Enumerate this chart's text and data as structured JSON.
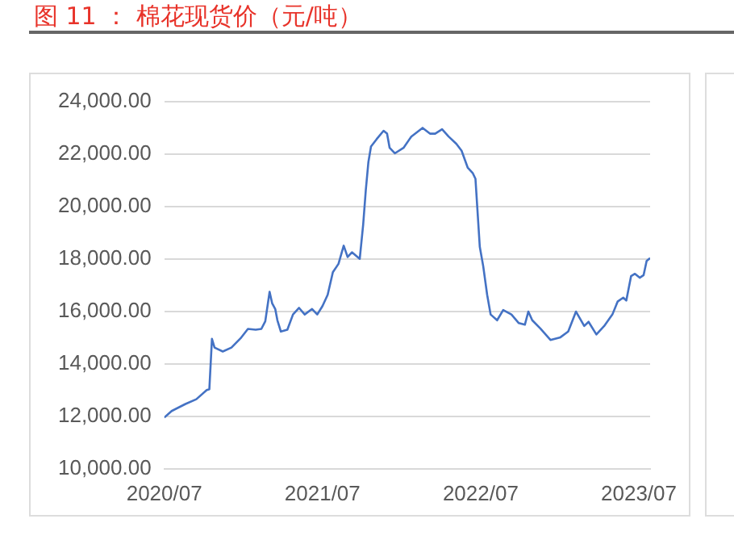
{
  "chart_data": {
    "type": "line",
    "title": "图 11 ： 棉花现货价（元/吨）",
    "x": [
      "2020-07-01",
      "2020-07-18",
      "2020-08-19",
      "2020-09-13",
      "2020-10-07",
      "2020-10-13",
      "2020-10-19",
      "2020-10-25",
      "2020-11-13",
      "2020-12-03",
      "2020-12-24",
      "2021-01-10",
      "2021-01-28",
      "2021-02-10",
      "2021-02-19",
      "2021-03-01",
      "2021-03-07",
      "2021-03-14",
      "2021-03-19",
      "2021-03-27",
      "2021-04-11",
      "2021-04-24",
      "2021-05-08",
      "2021-05-21",
      "2021-06-07",
      "2021-06-19",
      "2021-07-01",
      "2021-07-13",
      "2021-07-25",
      "2021-08-07",
      "2021-08-19",
      "2021-08-28",
      "2021-09-07",
      "2021-09-25",
      "2021-10-03",
      "2021-10-09",
      "2021-10-15",
      "2021-10-21",
      "2021-11-03",
      "2021-11-19",
      "2021-11-27",
      "2021-12-03",
      "2021-12-15",
      "2022-01-04",
      "2022-01-22",
      "2022-02-17",
      "2022-03-06",
      "2022-03-18",
      "2022-04-03",
      "2022-04-18",
      "2022-05-06",
      "2022-05-18",
      "2022-06-01",
      "2022-06-13",
      "2022-06-19",
      "2022-06-29",
      "2022-07-07",
      "2022-07-16",
      "2022-07-24",
      "2022-08-08",
      "2022-08-22",
      "2022-09-10",
      "2022-09-27",
      "2022-10-11",
      "2022-10-19",
      "2022-10-28",
      "2022-11-16",
      "2022-12-09",
      "2023-01-01",
      "2023-01-19",
      "2023-02-06",
      "2023-02-25",
      "2023-03-07",
      "2023-03-25",
      "2023-04-12",
      "2023-05-01",
      "2023-05-13",
      "2023-05-26",
      "2023-06-02",
      "2023-06-13",
      "2023-06-22",
      "2023-07-03",
      "2023-07-12",
      "2023-07-19",
      "2023-07-27"
    ],
    "series": [
      {
        "color": "#4472c4",
        "values": [
          11950,
          12200,
          12470,
          12650,
          13000,
          13030,
          14950,
          14620,
          14470,
          14620,
          14970,
          15330,
          15300,
          15330,
          15620,
          16740,
          16300,
          16090,
          15660,
          15230,
          15300,
          15880,
          16130,
          15880,
          16090,
          15880,
          16200,
          16630,
          17490,
          17810,
          18500,
          18070,
          18250,
          18000,
          19320,
          20620,
          21690,
          22280,
          22560,
          22880,
          22770,
          22230,
          22020,
          22230,
          22660,
          22990,
          22770,
          22770,
          22940,
          22660,
          22380,
          22120,
          21480,
          21260,
          21050,
          18460,
          17710,
          16630,
          15880,
          15660,
          16050,
          15880,
          15550,
          15490,
          15990,
          15660,
          15340,
          14910,
          15010,
          15230,
          15990,
          15440,
          15600,
          15120,
          15440,
          15880,
          16370,
          16520,
          16410,
          17340,
          17430,
          17280,
          17380,
          17920,
          18030
        ]
      }
    ],
    "xlim": [
      "2020-07-01",
      "2023-07-27"
    ],
    "xticks": [
      {
        "value": "2020-07-01",
        "label": "2020/07"
      },
      {
        "value": "2021-07-01",
        "label": "2021/07"
      },
      {
        "value": "2022-07-01",
        "label": "2022/07"
      },
      {
        "value": "2023-07-01",
        "label": "2023/07"
      }
    ],
    "ylim": [
      10000,
      24000
    ],
    "yticks": [
      {
        "value": 10000,
        "label": "10,000.00"
      },
      {
        "value": 12000,
        "label": "12,000.00"
      },
      {
        "value": 14000,
        "label": "14,000.00"
      },
      {
        "value": 16000,
        "label": "16,000.00"
      },
      {
        "value": 18000,
        "label": "18,000.00"
      },
      {
        "value": 20000,
        "label": "20,000.00"
      },
      {
        "value": 22000,
        "label": "22,000.00"
      },
      {
        "value": 24000,
        "label": "24,000.00"
      }
    ],
    "grid": "y",
    "legend": false,
    "marker": "none",
    "line_style": "solid"
  }
}
